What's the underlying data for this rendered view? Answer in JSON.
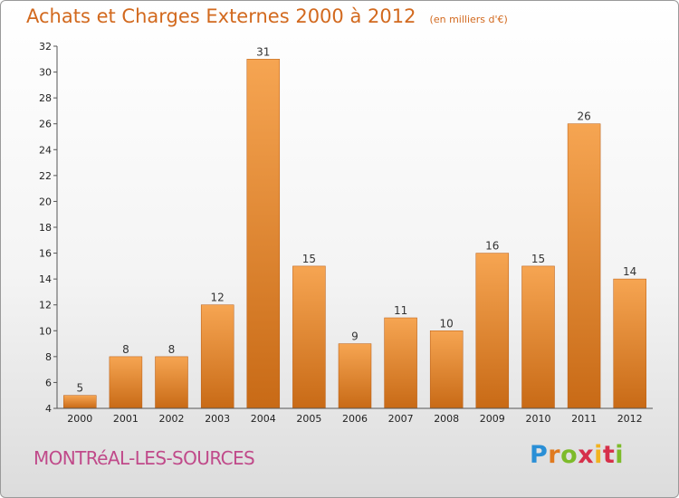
{
  "header": {
    "title": "Achats et Charges Externes 2000 à 2012",
    "unit": "(en milliers d'€)"
  },
  "footer": {
    "place": "MONTRéAL-LES-SOURCES",
    "logo": "Proxiti"
  },
  "colors": {
    "bar_light": "#f6a552",
    "bar_dark": "#c86a16",
    "accent": "#d2691e"
  },
  "chart_data": {
    "type": "bar",
    "categories": [
      "2000",
      "2001",
      "2002",
      "2003",
      "2004",
      "2005",
      "2006",
      "2007",
      "2008",
      "2009",
      "2010",
      "2011",
      "2012"
    ],
    "values": [
      5,
      8,
      8,
      12,
      31,
      15,
      9,
      11,
      10,
      16,
      15,
      26,
      14
    ],
    "title": "Achats et Charges Externes 2000 à 2012",
    "xlabel": "",
    "ylabel": "",
    "ylim": [
      4,
      32
    ],
    "yticks": [
      4,
      6,
      8,
      10,
      12,
      14,
      16,
      18,
      20,
      22,
      24,
      26,
      28,
      30,
      32
    ],
    "grid": false,
    "data_labels": true
  }
}
